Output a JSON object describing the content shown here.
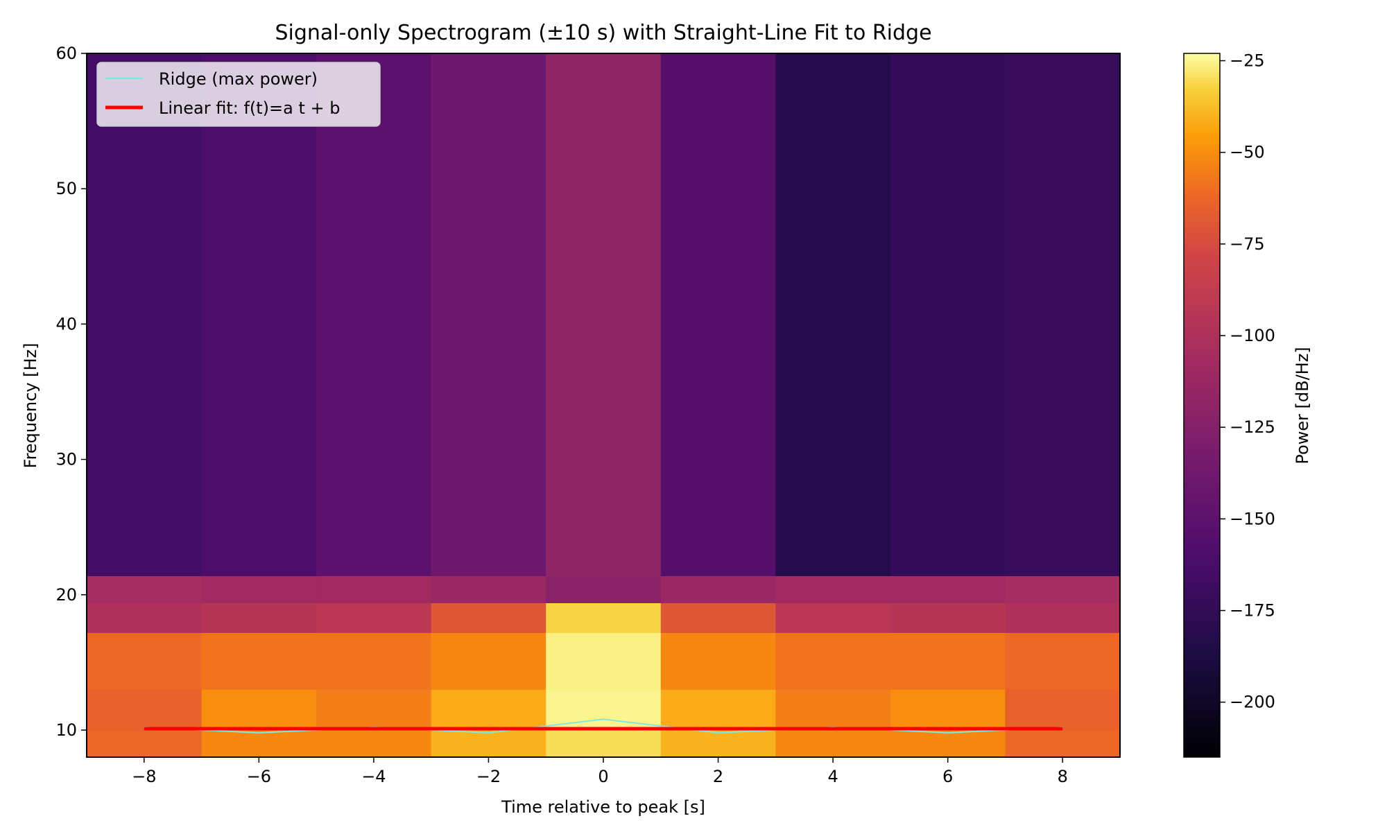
{
  "chart_data": {
    "type": "heatmap",
    "title": "Signal-only Spectrogram (±10 s) with Straight-Line Fit to Ridge",
    "xlabel": "Time relative to peak [s]",
    "ylabel": "Frequency [Hz]",
    "xlim": [
      -9,
      9
    ],
    "ylim": [
      8,
      60
    ],
    "x_ticks": [
      -8,
      -6,
      -4,
      -2,
      0,
      2,
      4,
      6,
      8
    ],
    "x_tick_labels": [
      "−8",
      "−6",
      "−4",
      "−2",
      "0",
      "2",
      "4",
      "6",
      "8"
    ],
    "y_ticks": [
      10,
      20,
      30,
      40,
      50,
      60
    ],
    "y_tick_labels": [
      "10",
      "20",
      "30",
      "40",
      "50",
      "60"
    ],
    "colormap": "inferno",
    "colorbar": {
      "label": "Power [dB/Hz]",
      "range": [
        -215,
        -23
      ],
      "ticks": [
        -25,
        -50,
        -75,
        -100,
        -125,
        -150,
        -175,
        -200
      ],
      "tick_labels": [
        "−25",
        "−50",
        "−75",
        "−100",
        "−125",
        "−150",
        "−175",
        "−200"
      ]
    },
    "time_bins": [
      -8,
      -6,
      -4,
      -2,
      0,
      2,
      4,
      6,
      8
    ],
    "bands_hz": [
      {
        "f": [
          8,
          10
        ],
        "db": [
          -62,
          -52,
          -52,
          -40,
          -30,
          -40,
          -52,
          -52,
          -62
        ]
      },
      {
        "f": [
          10,
          13
        ],
        "db": [
          -65,
          -50,
          -55,
          -42,
          -25,
          -42,
          -55,
          -50,
          -65
        ]
      },
      {
        "f": [
          13,
          17.2
        ],
        "db": [
          -62,
          -58,
          -58,
          -52,
          -26,
          -52,
          -58,
          -58,
          -62
        ]
      },
      {
        "f": [
          17.2,
          19.4
        ],
        "db": [
          -100,
          -95,
          -92,
          -70,
          -32,
          -70,
          -92,
          -95,
          -100
        ]
      },
      {
        "f": [
          19.4,
          21.4
        ],
        "db": [
          -105,
          -108,
          -108,
          -112,
          -122,
          -112,
          -108,
          -108,
          -105
        ]
      },
      {
        "f": [
          21.4,
          60
        ],
        "db": [
          -165,
          -160,
          -150,
          -140,
          -118,
          -155,
          -182,
          -175,
          -172
        ]
      }
    ],
    "legend_position": "upper left",
    "series": [
      {
        "name": "Ridge (max power)",
        "color": "#7fe8e0",
        "x": [
          -8,
          -6,
          -4,
          -2,
          0,
          2,
          4,
          6,
          8
        ],
        "y": [
          10.2,
          9.8,
          10.2,
          9.8,
          10.8,
          9.8,
          10.2,
          9.8,
          10.2
        ]
      },
      {
        "name": "Linear fit: f(t)=a t + b",
        "color": "#ff0000",
        "x": [
          -8,
          8
        ],
        "y": [
          10.1,
          10.1
        ]
      }
    ]
  }
}
